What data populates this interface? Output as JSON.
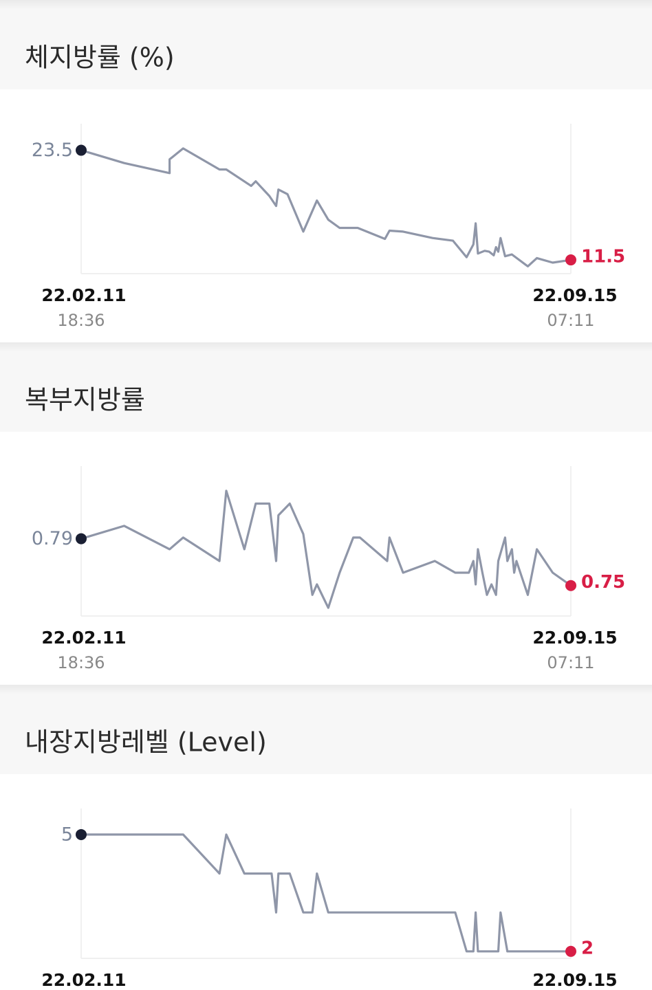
{
  "sections": [
    {
      "title": "체지방률 (%)",
      "chart": {
        "type": "line",
        "x": [
          0,
          19,
          39,
          39,
          45,
          61,
          64,
          75,
          77,
          83,
          86,
          87,
          91,
          98,
          104,
          109,
          114,
          122,
          134,
          136,
          142,
          155,
          164,
          170,
          173,
          174,
          175,
          178,
          180,
          182,
          183,
          184,
          185,
          187,
          190,
          197,
          201,
          208,
          216
        ],
        "values": [
          23.5,
          22.1,
          21.0,
          22.5,
          23.7,
          21.4,
          21.4,
          19.6,
          20.1,
          18.5,
          17.4,
          19.2,
          18.7,
          14.6,
          18.0,
          15.9,
          15.0,
          15.0,
          13.8,
          14.7,
          14.6,
          13.9,
          13.6,
          11.8,
          13.2,
          15.5,
          12.2,
          12.5,
          12.4,
          12.0,
          12.9,
          12.4,
          13.9,
          11.9,
          12.1,
          10.8,
          11.7,
          11.2,
          11.5
        ],
        "xlim": [
          0,
          216
        ],
        "ylim": [
          10,
          26.4
        ],
        "color": "#8f96a8",
        "start_color": "#1a1f33",
        "end_color": "#d81e46",
        "start_date": "22.02.11",
        "start_time": "18:36",
        "end_date": "22.09.15",
        "end_time": "07:11"
      }
    },
    {
      "title": "복부지방률",
      "chart": {
        "type": "line",
        "x": [
          0,
          19,
          39,
          45,
          61,
          64,
          72,
          77,
          83,
          86,
          87,
          92,
          98,
          102,
          104,
          109,
          114,
          120,
          123,
          135,
          136,
          142,
          156,
          165,
          171,
          173,
          174,
          175,
          177,
          179,
          181,
          183,
          184,
          187,
          188,
          190,
          191,
          192,
          197,
          201,
          208,
          216
        ],
        "values": [
          0.79,
          0.801,
          0.781,
          0.791,
          0.771,
          0.831,
          0.781,
          0.82,
          0.82,
          0.771,
          0.81,
          0.82,
          0.794,
          0.742,
          0.751,
          0.731,
          0.761,
          0.791,
          0.791,
          0.771,
          0.791,
          0.761,
          0.771,
          0.761,
          0.761,
          0.771,
          0.751,
          0.781,
          0.761,
          0.742,
          0.751,
          0.742,
          0.771,
          0.791,
          0.771,
          0.781,
          0.761,
          0.771,
          0.742,
          0.781,
          0.761,
          0.75
        ],
        "xlim": [
          0,
          216
        ],
        "ylim": [
          0.724,
          0.852
        ],
        "color": "#8f96a8",
        "start_color": "#1a1f33",
        "end_color": "#d81e46",
        "start_date": "22.02.11",
        "start_time": "18:36",
        "end_date": "22.09.15",
        "end_time": "07:11"
      }
    },
    {
      "title": "내장지방레벨 (Level)",
      "chart": {
        "type": "line",
        "x": [
          0,
          45,
          61,
          64,
          72,
          84,
          86,
          87,
          92,
          98,
          102,
          104,
          109,
          165,
          170,
          173,
          174,
          175,
          184,
          185,
          188,
          216
        ],
        "values": [
          5,
          5,
          4,
          5,
          4,
          4,
          3,
          4,
          4,
          3,
          3,
          4,
          3,
          3,
          2,
          2,
          3,
          2,
          2,
          3,
          2,
          2
        ],
        "xlim": [
          0,
          216
        ],
        "ylim": [
          1.82,
          5.67
        ],
        "color": "#8f96a8",
        "start_color": "#1a1f33",
        "end_color": "#d81e46",
        "start_date": "22.02.11",
        "end_date": "22.09.15"
      }
    }
  ]
}
